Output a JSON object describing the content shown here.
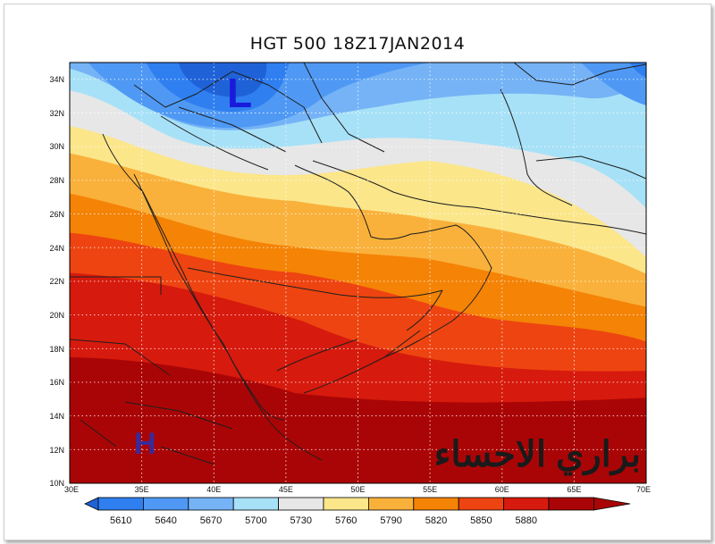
{
  "map": {
    "title": "HGT 500 18Z17JAN2014",
    "lat_labels": [
      "34N",
      "32N",
      "30N",
      "28N",
      "26N",
      "24N",
      "22N",
      "20N",
      "18N",
      "16N",
      "14N",
      "12N",
      "10N"
    ],
    "lon_labels": [
      "30E",
      "35E",
      "40E",
      "45E",
      "50E",
      "55E",
      "60E",
      "65E",
      "70E"
    ],
    "lat_range": [
      10,
      35
    ],
    "lon_range": [
      30,
      70
    ],
    "low_marker": "L",
    "high_marker": "H",
    "watermark": "براري الاحساء",
    "colors": {
      "low_marker": "#1a1adc",
      "high_marker": "#3a2a9a",
      "watermark": "#1a1a1a"
    }
  },
  "legend": {
    "levels": [
      "5610",
      "5640",
      "5670",
      "5700",
      "5730",
      "5760",
      "5790",
      "5820",
      "5850",
      "5880"
    ],
    "bins": [
      "#1f62d8",
      "#2f7ff0",
      "#4f99f5",
      "#75b3f6",
      "#a7e1f7",
      "#e7e7e7",
      "#fbe68a",
      "#f9b13b",
      "#f48306",
      "#ee4411",
      "#d61a0d",
      "#aa0506"
    ]
  }
}
